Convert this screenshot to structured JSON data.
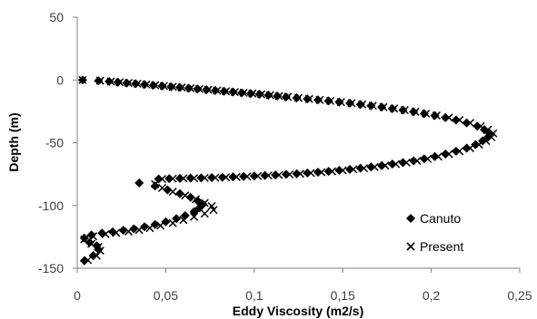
{
  "chart_data": {
    "type": "scatter",
    "title": "",
    "xlabel": "Eddy Viscosity (m2/s)",
    "ylabel": "Depth (m)",
    "xlim": [
      0,
      0.25
    ],
    "ylim": [
      -150,
      50
    ],
    "x_ticks": [
      "0",
      "0,05",
      "0,1",
      "0,15",
      "0,2",
      "0,25"
    ],
    "y_ticks": [
      "50",
      "0",
      "-50",
      "-100",
      "-150"
    ],
    "x_tick_values": [
      0,
      0.05,
      0.1,
      0.15,
      0.2,
      0.25
    ],
    "y_tick_values": [
      50,
      0,
      -50,
      -100,
      -150
    ],
    "grid": false,
    "legend_position": "bottom-right",
    "series": [
      {
        "name": "Canuto",
        "marker": "diamond",
        "color": "#000000",
        "points": [
          [
            0.003,
            0
          ],
          [
            0.012,
            -0.6
          ],
          [
            0.018,
            -1.2
          ],
          [
            0.023,
            -1.8
          ],
          [
            0.028,
            -2.4
          ],
          [
            0.033,
            -3.0
          ],
          [
            0.038,
            -3.6
          ],
          [
            0.043,
            -4.2
          ],
          [
            0.048,
            -4.8
          ],
          [
            0.053,
            -5.4
          ],
          [
            0.058,
            -6.0
          ],
          [
            0.063,
            -6.6
          ],
          [
            0.068,
            -7.2
          ],
          [
            0.073,
            -7.8
          ],
          [
            0.078,
            -8.4
          ],
          [
            0.083,
            -9.0
          ],
          [
            0.088,
            -9.6
          ],
          [
            0.093,
            -10.2
          ],
          [
            0.098,
            -10.8
          ],
          [
            0.103,
            -11.4
          ],
          [
            0.108,
            -12.1
          ],
          [
            0.113,
            -12.8
          ],
          [
            0.118,
            -13.5
          ],
          [
            0.124,
            -14.3
          ],
          [
            0.13,
            -15.1
          ],
          [
            0.136,
            -15.9
          ],
          [
            0.142,
            -16.7
          ],
          [
            0.148,
            -17.6
          ],
          [
            0.154,
            -18.5
          ],
          [
            0.16,
            -19.5
          ],
          [
            0.166,
            -20.5
          ],
          [
            0.172,
            -21.6
          ],
          [
            0.178,
            -22.8
          ],
          [
            0.184,
            -24.0
          ],
          [
            0.19,
            -25.3
          ],
          [
            0.196,
            -26.8
          ],
          [
            0.202,
            -28.3
          ],
          [
            0.208,
            -30.0
          ],
          [
            0.214,
            -31.9
          ],
          [
            0.22,
            -34.2
          ],
          [
            0.226,
            -36.8
          ],
          [
            0.23,
            -39.6
          ],
          [
            0.233,
            -42.5
          ],
          [
            0.232,
            -45.6
          ],
          [
            0.229,
            -48.6
          ],
          [
            0.225,
            -51.5
          ],
          [
            0.22,
            -54.3
          ],
          [
            0.214,
            -56.8
          ],
          [
            0.208,
            -59.0
          ],
          [
            0.202,
            -61.0
          ],
          [
            0.196,
            -62.8
          ],
          [
            0.19,
            -64.4
          ],
          [
            0.184,
            -65.8
          ],
          [
            0.178,
            -67.0
          ],
          [
            0.172,
            -68.2
          ],
          [
            0.166,
            -69.3
          ],
          [
            0.16,
            -70.3
          ],
          [
            0.154,
            -71.2
          ],
          [
            0.148,
            -72.0
          ],
          [
            0.142,
            -72.8
          ],
          [
            0.136,
            -73.5
          ],
          [
            0.13,
            -74.1
          ],
          [
            0.124,
            -74.7
          ],
          [
            0.118,
            -75.2
          ],
          [
            0.112,
            -75.7
          ],
          [
            0.106,
            -76.1
          ],
          [
            0.1,
            -76.5
          ],
          [
            0.094,
            -76.9
          ],
          [
            0.088,
            -77.2
          ],
          [
            0.082,
            -77.5
          ],
          [
            0.076,
            -77.8
          ],
          [
            0.07,
            -78.0
          ],
          [
            0.064,
            -78.2
          ],
          [
            0.058,
            -78.4
          ],
          [
            0.052,
            -78.6
          ],
          [
            0.046,
            -78.9
          ],
          [
            0.035,
            -82.0
          ],
          [
            0.044,
            -84.5
          ],
          [
            0.051,
            -87.5
          ],
          [
            0.058,
            -90.5
          ],
          [
            0.064,
            -93.5
          ],
          [
            0.068,
            -96.2
          ],
          [
            0.071,
            -99.0
          ],
          [
            0.069,
            -102.0
          ],
          [
            0.066,
            -105.0
          ],
          [
            0.061,
            -108.0
          ],
          [
            0.056,
            -110.5
          ],
          [
            0.05,
            -113.0
          ],
          [
            0.044,
            -115.2
          ],
          [
            0.038,
            -117.0
          ],
          [
            0.032,
            -118.6
          ],
          [
            0.026,
            -119.8
          ],
          [
            0.02,
            -121.0
          ],
          [
            0.014,
            -122.0
          ],
          [
            0.008,
            -123.5
          ],
          [
            0.004,
            -126.0
          ],
          [
            0.007,
            -129.5
          ],
          [
            0.011,
            -132.0
          ],
          [
            0.012,
            -135.0
          ],
          [
            0.009,
            -140.0
          ],
          [
            0.004,
            -144.0
          ]
        ]
      },
      {
        "name": "Present",
        "marker": "cross",
        "color": "#000000",
        "points": [
          [
            0.003,
            0
          ],
          [
            0.013,
            -0.6
          ],
          [
            0.019,
            -1.2
          ],
          [
            0.024,
            -1.8
          ],
          [
            0.029,
            -2.4
          ],
          [
            0.034,
            -3.0
          ],
          [
            0.039,
            -3.6
          ],
          [
            0.044,
            -4.2
          ],
          [
            0.049,
            -4.8
          ],
          [
            0.054,
            -5.4
          ],
          [
            0.059,
            -6.0
          ],
          [
            0.064,
            -6.6
          ],
          [
            0.069,
            -7.2
          ],
          [
            0.074,
            -7.8
          ],
          [
            0.079,
            -8.4
          ],
          [
            0.084,
            -9.0
          ],
          [
            0.089,
            -9.6
          ],
          [
            0.094,
            -10.2
          ],
          [
            0.099,
            -10.8
          ],
          [
            0.104,
            -11.4
          ],
          [
            0.109,
            -12.1
          ],
          [
            0.114,
            -12.8
          ],
          [
            0.119,
            -13.5
          ],
          [
            0.125,
            -14.3
          ],
          [
            0.131,
            -15.1
          ],
          [
            0.137,
            -15.9
          ],
          [
            0.143,
            -16.7
          ],
          [
            0.149,
            -17.6
          ],
          [
            0.155,
            -18.5
          ],
          [
            0.161,
            -19.5
          ],
          [
            0.167,
            -20.5
          ],
          [
            0.173,
            -21.6
          ],
          [
            0.179,
            -22.8
          ],
          [
            0.185,
            -24.0
          ],
          [
            0.191,
            -25.3
          ],
          [
            0.197,
            -26.8
          ],
          [
            0.203,
            -28.3
          ],
          [
            0.21,
            -30.0
          ],
          [
            0.216,
            -31.9
          ],
          [
            0.222,
            -34.2
          ],
          [
            0.228,
            -36.8
          ],
          [
            0.232,
            -39.6
          ],
          [
            0.235,
            -42.5
          ],
          [
            0.234,
            -45.6
          ],
          [
            0.231,
            -48.6
          ],
          [
            0.227,
            -51.5
          ],
          [
            0.222,
            -54.3
          ],
          [
            0.216,
            -56.8
          ],
          [
            0.21,
            -59.0
          ],
          [
            0.204,
            -61.0
          ],
          [
            0.198,
            -62.8
          ],
          [
            0.192,
            -64.4
          ],
          [
            0.186,
            -65.8
          ],
          [
            0.18,
            -67.0
          ],
          [
            0.174,
            -68.2
          ],
          [
            0.168,
            -69.3
          ],
          [
            0.162,
            -70.3
          ],
          [
            0.156,
            -71.2
          ],
          [
            0.15,
            -72.0
          ],
          [
            0.144,
            -72.8
          ],
          [
            0.138,
            -73.5
          ],
          [
            0.132,
            -74.1
          ],
          [
            0.126,
            -74.7
          ],
          [
            0.12,
            -75.2
          ],
          [
            0.114,
            -75.7
          ],
          [
            0.108,
            -76.1
          ],
          [
            0.102,
            -76.5
          ],
          [
            0.096,
            -76.9
          ],
          [
            0.09,
            -77.2
          ],
          [
            0.084,
            -77.5
          ],
          [
            0.078,
            -77.8
          ],
          [
            0.072,
            -78.0
          ],
          [
            0.066,
            -78.2
          ],
          [
            0.06,
            -78.4
          ],
          [
            0.054,
            -78.6
          ],
          [
            0.048,
            -78.9
          ],
          [
            0.044,
            -83.0
          ],
          [
            0.048,
            -86.0
          ],
          [
            0.054,
            -89.0
          ],
          [
            0.061,
            -92.0
          ],
          [
            0.067,
            -95.0
          ],
          [
            0.072,
            -98.0
          ],
          [
            0.076,
            -100.5
          ],
          [
            0.077,
            -103.5
          ],
          [
            0.072,
            -106.5
          ],
          [
            0.066,
            -109.0
          ],
          [
            0.06,
            -111.5
          ],
          [
            0.054,
            -114.0
          ],
          [
            0.047,
            -116.0
          ],
          [
            0.041,
            -118.0
          ],
          [
            0.035,
            -119.5
          ],
          [
            0.029,
            -120.7
          ],
          [
            0.022,
            -121.8
          ],
          [
            0.016,
            -122.8
          ],
          [
            0.009,
            -124.5
          ],
          [
            0.004,
            -127.0
          ],
          [
            0.008,
            -130.5
          ],
          [
            0.012,
            -133.0
          ],
          [
            0.013,
            -136.0
          ],
          [
            0.011,
            -140.0
          ],
          [
            0.006,
            -143.5
          ]
        ]
      }
    ]
  }
}
